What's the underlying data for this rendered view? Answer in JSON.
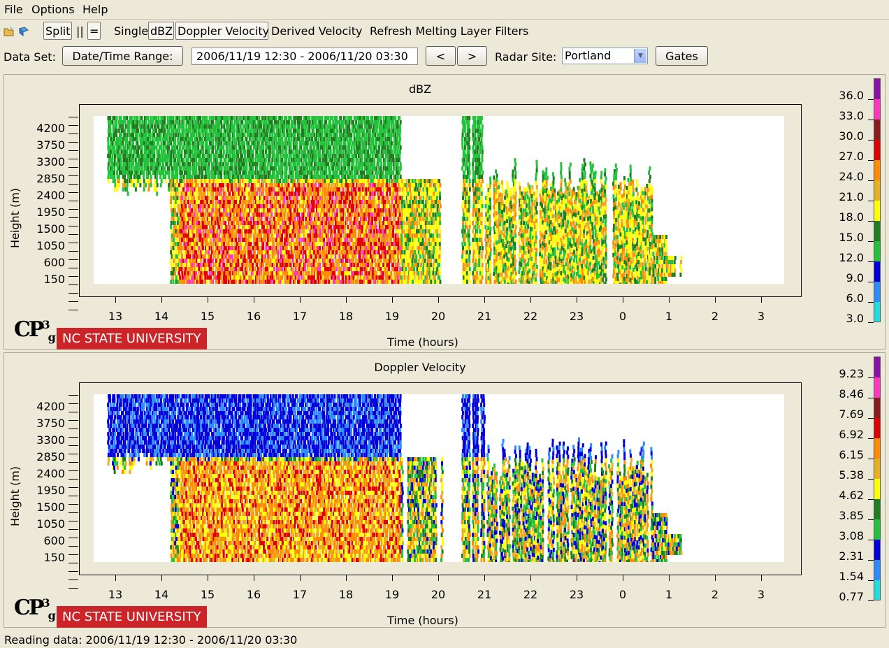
{
  "menu": {
    "file": "File",
    "options": "Options",
    "help": "Help"
  },
  "toolbar": {
    "split": "Split",
    "pipes": "||",
    "equals": "=",
    "single": "Single",
    "dbz": "dBZ",
    "doppler": "Doppler Velocity",
    "derived": "Derived Velocity",
    "refresh": "Refresh Melting Layer Filters"
  },
  "dataset": {
    "label": "Data Set:",
    "range_button": "Date/Time Range:",
    "range_value": "2006/11/19 12:30 - 2006/11/20 03:30",
    "prev": "<",
    "next": ">",
    "radar_label": "Radar Site:",
    "radar_value": "Portland",
    "gates": "Gates"
  },
  "panels": [
    {
      "title": "dBZ",
      "ylabel": "Height (m)",
      "xlabel": "Time (hours)",
      "colorbar_labels": [
        "36.0",
        "33.0",
        "30.0",
        "27.0",
        "24.0",
        "21.0",
        "18.0",
        "15.0",
        "12.0",
        "9.0",
        "6.0",
        "3.0"
      ]
    },
    {
      "title": "Doppler Velocity",
      "ylabel": "Height (m)",
      "xlabel": "Time (hours)",
      "colorbar_labels": [
        "9.23",
        "8.46",
        "7.69",
        "6.92",
        "6.15",
        "5.38",
        "4.62",
        "3.85",
        "3.08",
        "2.31",
        "1.54",
        "0.77"
      ]
    }
  ],
  "axes": {
    "yticks": [
      "4200",
      "3750",
      "3300",
      "2850",
      "2400",
      "1950",
      "1500",
      "1050",
      "600",
      "150"
    ],
    "xticks": [
      "13",
      "14",
      "15",
      "16",
      "17",
      "18",
      "19",
      "20",
      "21",
      "22",
      "23",
      "0",
      "1",
      "2",
      "3"
    ]
  },
  "colorbar_colors": [
    "#8b0fa8",
    "#ff36c0",
    "#8b1a1a",
    "#e00000",
    "#ff8c00",
    "#e8b020",
    "#ffff00",
    "#1f7f1f",
    "#22c33a",
    "#0000dd",
    "#2c8cff",
    "#22dddd"
  ],
  "logo": {
    "cp": "CP",
    "cp_sup": "3",
    "cp_sub": "g",
    "ncsu": "NC STATE UNIVERSITY"
  },
  "status": "Reading data: 2006/11/19 12:30 - 2006/11/20 03:30"
}
